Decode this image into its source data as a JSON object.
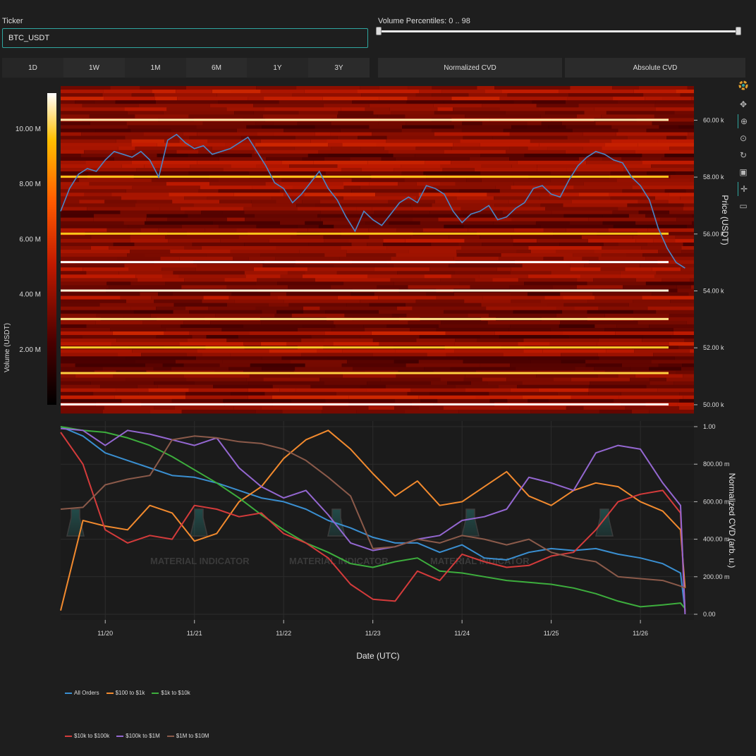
{
  "ticker": {
    "label": "Ticker",
    "value": "BTC_USDT"
  },
  "volume_slider": {
    "label": "Volume Percentiles: 0 .. 98",
    "min": 0,
    "max": 98
  },
  "timeframes": [
    "1D",
    "1W",
    "1M",
    "6M",
    "1Y",
    "3Y"
  ],
  "cvd_modes": [
    "Normalized CVD",
    "Absolute CVD"
  ],
  "toolbar": [
    "logo-icon",
    "pan-icon",
    "box-zoom-icon",
    "wheel-zoom-icon",
    "reset-icon",
    "save-icon",
    "crosshair-icon",
    "hover-icon"
  ],
  "colors": {
    "background": "#1e1e1e",
    "accent": "#2fa6a0",
    "price_line": "#4a86c8"
  },
  "chart_data": [
    {
      "type": "heatmap",
      "title": "",
      "ylabel": "Price (USDT)",
      "ylim": [
        49700,
        61200
      ],
      "y_ticks": [
        50000,
        52000,
        54000,
        56000,
        58000,
        60000
      ],
      "y_tick_labels": [
        "50.00 k",
        "52.00 k",
        "54.00 k",
        "56.00 k",
        "58.00 k",
        "60.00 k"
      ],
      "colorbar": {
        "label": "Volume (USDT)",
        "range": [
          0,
          11300000
        ],
        "ticks": [
          2000000,
          4000000,
          6000000,
          8000000,
          10000000
        ],
        "tick_labels": [
          "2.00 M",
          "4.00 M",
          "6.00 M",
          "8.00 M",
          "10.00 M"
        ]
      },
      "bright_levels": [
        {
          "price": 50000,
          "intensity": 1.0
        },
        {
          "price": 51100,
          "intensity": 0.75
        },
        {
          "price": 52000,
          "intensity": 0.72
        },
        {
          "price": 53000,
          "intensity": 0.85
        },
        {
          "price": 54000,
          "intensity": 0.95
        },
        {
          "price": 55000,
          "intensity": 1.0
        },
        {
          "price": 56000,
          "intensity": 0.7
        },
        {
          "price": 58000,
          "intensity": 0.7
        },
        {
          "price": 60000,
          "intensity": 0.9
        }
      ],
      "price_series": {
        "name": "Price",
        "x": [
          0.0,
          0.1,
          0.2,
          0.3,
          0.4,
          0.5,
          0.6,
          0.7,
          0.8,
          0.9,
          1.0,
          1.1,
          1.2,
          1.3,
          1.4,
          1.5,
          1.6,
          1.7,
          1.8,
          1.9,
          2.0,
          2.1,
          2.2,
          2.3,
          2.4,
          2.5,
          2.6,
          2.7,
          2.8,
          2.9,
          3.0,
          3.1,
          3.2,
          3.3,
          3.4,
          3.5,
          3.6,
          3.7,
          3.8,
          3.9,
          4.0,
          4.1,
          4.2,
          4.3,
          4.4,
          4.5,
          4.6,
          4.7,
          4.8,
          4.9,
          5.0,
          5.1,
          5.2,
          5.3,
          5.4,
          5.5,
          5.6,
          5.7,
          5.8,
          5.9,
          6.0,
          6.1,
          6.2,
          6.3,
          6.4,
          6.5,
          6.6,
          6.7,
          6.8,
          6.9,
          7.0
        ],
        "y": [
          56800,
          57600,
          58100,
          58300,
          58200,
          58600,
          58900,
          58800,
          58700,
          58900,
          58600,
          58000,
          59300,
          59500,
          59200,
          59000,
          59100,
          58800,
          58900,
          59000,
          59200,
          59400,
          58900,
          58400,
          57800,
          57600,
          57100,
          57400,
          57800,
          58200,
          57600,
          57200,
          56600,
          56100,
          56800,
          56500,
          56300,
          56700,
          57100,
          57300,
          57100,
          57700,
          57600,
          57400,
          56800,
          56400,
          56700,
          56800,
          57000,
          56500,
          56600,
          56900,
          57100,
          57600,
          57700,
          57400,
          57300,
          57900,
          58400,
          58700,
          58900,
          58800,
          58600,
          58500,
          58000,
          57700,
          57200,
          56200,
          55500,
          55000,
          54800
        ]
      }
    },
    {
      "type": "line",
      "title": "",
      "xlabel": "Date (UTC)",
      "ylabel": "Normalized CVD (arb. u.)",
      "ylim": [
        -0.03,
        1.03
      ],
      "y_ticks": [
        0,
        0.2,
        0.4,
        0.6,
        0.8,
        1.0
      ],
      "y_tick_labels": [
        "0.00",
        "200.00 m",
        "400.00 m",
        "600.00 m",
        "800.00 m",
        "1.00"
      ],
      "x_range": [
        0,
        7.1
      ],
      "x_ticks": [
        0.5,
        1.5,
        2.5,
        3.5,
        4.5,
        5.5,
        6.5
      ],
      "categories": [
        "11/20",
        "11/21",
        "11/22",
        "11/23",
        "11/24",
        "11/25",
        "11/26"
      ],
      "x": [
        0.0,
        0.25,
        0.5,
        0.75,
        1.0,
        1.25,
        1.5,
        1.75,
        2.0,
        2.25,
        2.5,
        2.75,
        3.0,
        3.25,
        3.5,
        3.75,
        4.0,
        4.25,
        4.5,
        4.75,
        5.0,
        5.25,
        5.5,
        5.75,
        6.0,
        6.25,
        6.5,
        6.75,
        6.95,
        7.0
      ],
      "series": [
        {
          "name": "All Orders",
          "color": "#3a8fd1",
          "values": [
            1.0,
            0.95,
            0.86,
            0.82,
            0.78,
            0.74,
            0.73,
            0.7,
            0.66,
            0.62,
            0.6,
            0.56,
            0.5,
            0.46,
            0.41,
            0.38,
            0.38,
            0.33,
            0.37,
            0.3,
            0.29,
            0.33,
            0.35,
            0.34,
            0.35,
            0.32,
            0.3,
            0.27,
            0.22,
            0.02
          ]
        },
        {
          "name": "$100 to $1k",
          "color": "#f28a2e",
          "values": [
            0.02,
            0.5,
            0.47,
            0.45,
            0.58,
            0.54,
            0.39,
            0.43,
            0.6,
            0.68,
            0.83,
            0.93,
            0.98,
            0.88,
            0.75,
            0.63,
            0.71,
            0.58,
            0.6,
            0.68,
            0.76,
            0.63,
            0.58,
            0.66,
            0.7,
            0.68,
            0.6,
            0.55,
            0.45,
            0.14
          ]
        },
        {
          "name": "$1k to $10k",
          "color": "#3dae3d",
          "values": [
            1.0,
            0.98,
            0.97,
            0.94,
            0.9,
            0.84,
            0.77,
            0.7,
            0.62,
            0.53,
            0.45,
            0.38,
            0.33,
            0.27,
            0.25,
            0.28,
            0.3,
            0.23,
            0.22,
            0.2,
            0.18,
            0.17,
            0.16,
            0.14,
            0.11,
            0.07,
            0.04,
            0.05,
            0.06,
            0.03
          ]
        },
        {
          "name": "$10k to $100k",
          "color": "#d43b3b",
          "values": [
            0.97,
            0.8,
            0.45,
            0.38,
            0.42,
            0.4,
            0.58,
            0.56,
            0.52,
            0.54,
            0.43,
            0.38,
            0.3,
            0.16,
            0.08,
            0.07,
            0.23,
            0.18,
            0.32,
            0.28,
            0.25,
            0.26,
            0.31,
            0.33,
            0.45,
            0.6,
            0.64,
            0.66,
            0.54,
            0.01
          ]
        },
        {
          "name": "$100k to $1M",
          "color": "#9467d1",
          "values": [
            0.99,
            0.98,
            0.9,
            0.98,
            0.96,
            0.93,
            0.9,
            0.94,
            0.78,
            0.68,
            0.62,
            0.66,
            0.53,
            0.38,
            0.34,
            0.36,
            0.4,
            0.42,
            0.5,
            0.52,
            0.56,
            0.73,
            0.7,
            0.66,
            0.86,
            0.9,
            0.88,
            0.7,
            0.58,
            0.0
          ]
        },
        {
          "name": "$1M to $10M",
          "color": "#8b5a4a",
          "values": [
            0.56,
            0.57,
            0.69,
            0.72,
            0.74,
            0.93,
            0.95,
            0.94,
            0.92,
            0.91,
            0.88,
            0.82,
            0.73,
            0.63,
            0.35,
            0.36,
            0.4,
            0.38,
            0.42,
            0.4,
            0.37,
            0.4,
            0.33,
            0.3,
            0.28,
            0.2,
            0.19,
            0.18,
            0.15,
            0.14
          ]
        }
      ]
    }
  ],
  "watermark": "MATERIAL INDICATOR"
}
